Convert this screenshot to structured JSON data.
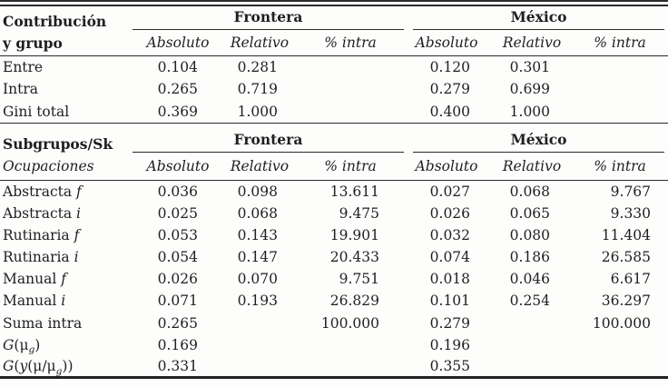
{
  "colors": {
    "background": "#fdfdfc",
    "text": "#1f1f1f",
    "rule": "#2b2b2b"
  },
  "table": {
    "section1": {
      "row_header_line1": "Contribución",
      "row_header_line2": "y grupo",
      "groups": [
        "Frontera",
        "México"
      ],
      "subheaders": [
        "Absoluto",
        "Relativo",
        "% intra"
      ],
      "rows": [
        {
          "label": [
            {
              "t": "Entre"
            }
          ],
          "values": [
            "0.104",
            "0.281",
            "",
            "0.120",
            "0.301",
            ""
          ]
        },
        {
          "label": [
            {
              "t": "Intra"
            }
          ],
          "values": [
            "0.265",
            "0.719",
            "",
            "0.279",
            "0.699",
            ""
          ]
        },
        {
          "label": [
            {
              "t": "Gini total"
            }
          ],
          "values": [
            "0.369",
            "1.000",
            "",
            "0.400",
            "1.000",
            ""
          ]
        }
      ]
    },
    "section2": {
      "row_header": "Subgrupos/Sk",
      "groups": [
        "Frontera",
        "México"
      ],
      "col_header": "Ocupaciones",
      "subheaders": [
        "Absoluto",
        "Relativo",
        "% intra"
      ],
      "rows": [
        {
          "label": [
            {
              "t": "Abstracta "
            },
            {
              "t": "f",
              "i": true
            }
          ],
          "values": [
            "0.036",
            "0.098",
            "13.611",
            "0.027",
            "0.068",
            "9.767"
          ]
        },
        {
          "label": [
            {
              "t": "Abstracta "
            },
            {
              "t": "i",
              "i": true
            }
          ],
          "values": [
            "0.025",
            "0.068",
            "9.475",
            "0.026",
            "0.065",
            "9.330"
          ]
        },
        {
          "label": [
            {
              "t": "Rutinaria "
            },
            {
              "t": "f",
              "i": true
            }
          ],
          "values": [
            "0.053",
            "0.143",
            "19.901",
            "0.032",
            "0.080",
            "11.404"
          ]
        },
        {
          "label": [
            {
              "t": "Rutinaria "
            },
            {
              "t": "i",
              "i": true
            }
          ],
          "values": [
            "0.054",
            "0.147",
            "20.433",
            "0.074",
            "0.186",
            "26.585"
          ]
        },
        {
          "label": [
            {
              "t": "Manual "
            },
            {
              "t": "f",
              "i": true
            }
          ],
          "values": [
            "0.026",
            "0.070",
            "9.751",
            "0.018",
            "0.046",
            "6.617"
          ]
        },
        {
          "label": [
            {
              "t": "Manual "
            },
            {
              "t": "i",
              "i": true
            }
          ],
          "values": [
            "0.071",
            "0.193",
            "26.829",
            "0.101",
            "0.254",
            "36.297"
          ]
        },
        {
          "label": [
            {
              "t": "Suma intra"
            }
          ],
          "values": [
            "0.265",
            "",
            "100.000",
            "0.279",
            "",
            "100.000"
          ]
        },
        {
          "label": [
            {
              "t": "G",
              "i": true
            },
            {
              "t": "(μ"
            },
            {
              "t": "g",
              "i": true,
              "sub": true
            },
            {
              "t": ")"
            }
          ],
          "values": [
            "0.169",
            "",
            "",
            "0.196",
            "",
            ""
          ]
        },
        {
          "label": [
            {
              "t": "G",
              "i": true
            },
            {
              "t": "("
            },
            {
              "t": "y",
              "i": true
            },
            {
              "t": "(μ/μ"
            },
            {
              "t": "g",
              "i": true,
              "sub": true
            },
            {
              "t": "))"
            }
          ],
          "values": [
            "0.331",
            "",
            "",
            "0.355",
            "",
            ""
          ]
        }
      ]
    }
  }
}
